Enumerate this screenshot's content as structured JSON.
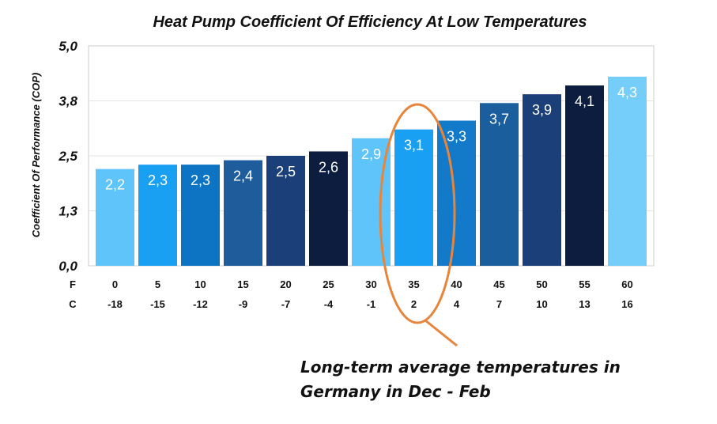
{
  "chart_data": {
    "type": "bar",
    "title": "Heat Pump Coefficient Of Efficiency At Low Temperatures",
    "ylabel": "Coefficient Of Performance (COP)",
    "yticks": [
      "0,0",
      "1,3",
      "2,5",
      "3,8",
      "5,0"
    ],
    "ylim": [
      0,
      5
    ],
    "row_labels": [
      "F",
      "C"
    ],
    "categories_F": [
      "0",
      "5",
      "10",
      "15",
      "20",
      "25",
      "30",
      "35",
      "40",
      "45",
      "50",
      "55",
      "60"
    ],
    "categories_C": [
      "-18",
      "-15",
      "-12",
      "-9",
      "-7",
      "-4",
      "-1",
      "2",
      "4",
      "7",
      "10",
      "13",
      "16"
    ],
    "values": [
      2.2,
      2.3,
      2.3,
      2.4,
      2.5,
      2.6,
      2.9,
      3.1,
      3.3,
      3.7,
      3.9,
      4.1,
      4.3
    ],
    "value_labels": [
      "2,2",
      "2,3",
      "2,3",
      "2,4",
      "2,5",
      "2,6",
      "2,9",
      "3,1",
      "3,3",
      "3,7",
      "3,9",
      "4,1",
      "4,3"
    ],
    "bar_colors": [
      "#5ec4fa",
      "#1aa0f2",
      "#0d74c4",
      "#1f5c9c",
      "#1b3f78",
      "#0c1d40",
      "#5ec4fa",
      "#1aa0f2",
      "#127ac8",
      "#1b5e9e",
      "#1b3f78",
      "#0c1d40",
      "#75cefa"
    ],
    "grid": true,
    "annotation": {
      "lines": [
        "Long-term average temperatures in",
        "Germany in Dec - Feb"
      ],
      "color": "#e8853a",
      "highlight_category_F": "35"
    }
  }
}
